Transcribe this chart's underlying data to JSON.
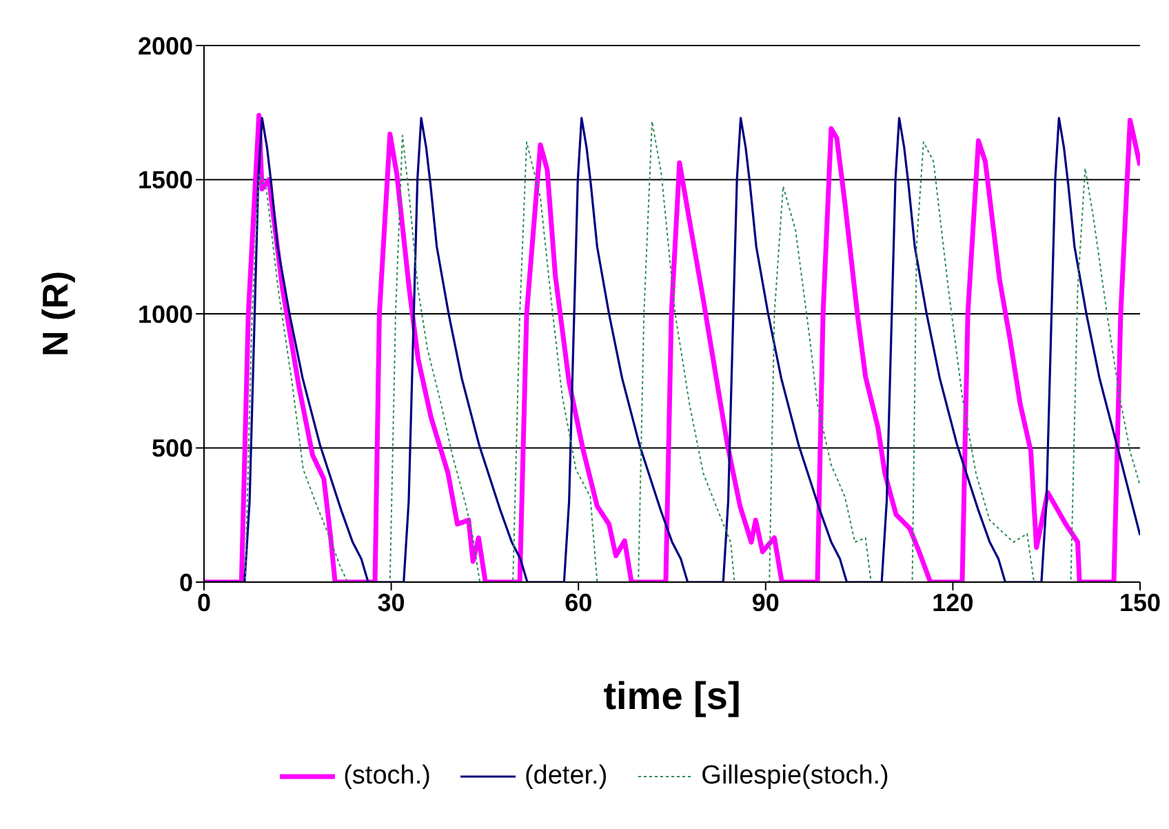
{
  "chart_data": {
    "type": "line",
    "xlabel": "time [s]",
    "ylabel": "N (R)",
    "xlim": [
      0,
      150
    ],
    "xticks": [
      0,
      30,
      60,
      90,
      120,
      150
    ],
    "ylim": [
      0,
      2000
    ],
    "yticks": [
      0,
      500,
      1000,
      1500,
      2000
    ],
    "grid": "y",
    "legend": "bottom",
    "marker": "none",
    "series": [
      {
        "name": "(stoch.)",
        "color": "#ff00ff",
        "line_style": "solid",
        "x": [
          0,
          6.0,
          7.1,
          8.8,
          9.3,
          10.4,
          12.6,
          15.2,
          17.4,
          19.2,
          20.3,
          21.0,
          27.4,
          28.1,
          29.8,
          30.9,
          32.9,
          34.3,
          36.4,
          39.1,
          40.6,
          42.4,
          43.1,
          44.0,
          45.1,
          50.6,
          51.7,
          53.9,
          55.0,
          56.3,
          58.5,
          60.8,
          63.0,
          64.9,
          66.0,
          67.4,
          68.5,
          74.0,
          74.9,
          76.2,
          77.8,
          80.0,
          82.2,
          83.9,
          85.9,
          87.7,
          88.4,
          89.5,
          91.4,
          92.6,
          98.3,
          99.2,
          100.5,
          101.4,
          102.7,
          104.7,
          106.0,
          108.0,
          109.1,
          110.9,
          113.1,
          114.6,
          116.4,
          121.5,
          122.4,
          124.1,
          125.2,
          127.5,
          129.2,
          130.8,
          132.5,
          133.4,
          135.2,
          138.1,
          140.0,
          140.3,
          145.8,
          146.9,
          148.4,
          150
        ],
        "values": [
          0,
          0,
          1000,
          1740,
          1465,
          1500,
          1090,
          730,
          473,
          385,
          165,
          0,
          0,
          1000,
          1670,
          1520,
          1090,
          833,
          612,
          406,
          216,
          231,
          77,
          165,
          0,
          0,
          1000,
          1630,
          1537,
          1141,
          745,
          488,
          283,
          216,
          98,
          154,
          0,
          0,
          1000,
          1563,
          1347,
          1054,
          745,
          509,
          283,
          149,
          231,
          113,
          165,
          0,
          0,
          1000,
          1690,
          1655,
          1414,
          1000,
          766,
          576,
          406,
          252,
          200,
          113,
          0,
          0,
          1000,
          1645,
          1568,
          1126,
          900,
          663,
          488,
          129,
          334,
          216,
          149,
          0,
          0,
          1000,
          1722,
          1553
        ]
      },
      {
        "name": "(deter.)",
        "color": "#000080",
        "line_style": "solid",
        "x": [
          0,
          6.5,
          7.3,
          8.0,
          8.7,
          9.3,
          10.1,
          10.8,
          11.8,
          13.7,
          15.8,
          18.6,
          22.0,
          23.8,
          25.2,
          26.3,
          32.0,
          32.8,
          33.5,
          34.2,
          34.8,
          35.6,
          36.3,
          37.3,
          39.2,
          41.3,
          44.1,
          47.5,
          49.3,
          50.7,
          51.8,
          57.7,
          58.5,
          59.2,
          59.9,
          60.5,
          61.3,
          62.0,
          63.0,
          64.9,
          67.0,
          69.8,
          73.2,
          75.0,
          76.4,
          77.5,
          83.2,
          84.0,
          84.7,
          85.4,
          86.0,
          86.8,
          87.5,
          88.5,
          90.4,
          92.5,
          95.3,
          98.7,
          100.5,
          101.9,
          103.0,
          108.6,
          109.4,
          110.1,
          110.8,
          111.4,
          112.2,
          112.9,
          113.9,
          115.8,
          117.9,
          120.7,
          124.1,
          125.9,
          127.3,
          128.4,
          134.2,
          135.0,
          135.7,
          136.4,
          137.0,
          137.8,
          138.5,
          139.5,
          141.4,
          143.5,
          146.3,
          150
        ],
        "values": [
          0,
          0,
          300,
          900,
          1500,
          1730,
          1620,
          1480,
          1250,
          1000,
          760,
          510,
          267,
          150,
          87,
          0,
          0,
          300,
          900,
          1500,
          1730,
          1620,
          1480,
          1250,
          1000,
          760,
          510,
          267,
          150,
          87,
          0,
          0,
          300,
          900,
          1500,
          1730,
          1620,
          1480,
          1250,
          1000,
          760,
          510,
          267,
          150,
          87,
          0,
          0,
          300,
          900,
          1500,
          1730,
          1620,
          1480,
          1250,
          1000,
          760,
          510,
          267,
          150,
          87,
          0,
          0,
          300,
          900,
          1500,
          1730,
          1620,
          1480,
          1250,
          1000,
          760,
          510,
          267,
          150,
          87,
          0,
          0,
          300,
          900,
          1500,
          1730,
          1620,
          1480,
          1250,
          1000,
          760,
          510,
          175
        ]
      },
      {
        "name": "Gillespie(stoch.)",
        "color": "#2e8b57",
        "line_style": "dotted",
        "x": [
          0,
          6.6,
          7.7,
          8.8,
          10.0,
          11.9,
          14.1,
          15.9,
          18.1,
          19.9,
          21.8,
          23.0,
          29.8,
          30.7,
          31.8,
          32.9,
          34.3,
          35.8,
          38.0,
          39.8,
          42.0,
          43.1,
          44.2,
          49.5,
          50.6,
          51.7,
          53.9,
          55.7,
          57.4,
          59.6,
          61.9,
          63.0,
          69.6,
          70.5,
          71.8,
          73.3,
          75.5,
          77.8,
          80.0,
          82.6,
          84.4,
          85.0,
          90.6,
          91.4,
          92.8,
          94.8,
          97.0,
          98.3,
          100.5,
          102.7,
          104.3,
          106.0,
          106.9,
          113.5,
          114.2,
          115.3,
          116.9,
          119.3,
          121.5,
          123.7,
          125.9,
          129.7,
          131.9,
          133.0,
          138.9,
          140.0,
          141.2,
          142.5,
          144.7,
          146.7,
          148.4,
          150
        ],
        "values": [
          0,
          0,
          1000,
          1520,
          1465,
          1090,
          745,
          420,
          283,
          180,
          60,
          0,
          0,
          1000,
          1665,
          1434,
          1090,
          869,
          663,
          473,
          283,
          165,
          0,
          0,
          1000,
          1640,
          1434,
          1038,
          694,
          420,
          318,
          0,
          0,
          1000,
          1717,
          1520,
          1000,
          663,
          406,
          252,
          149,
          0,
          0,
          1000,
          1475,
          1311,
          920,
          663,
          437,
          318,
          149,
          165,
          0,
          0,
          1260,
          1640,
          1568,
          1090,
          694,
          406,
          231,
          149,
          180,
          0,
          0,
          1090,
          1542,
          1363,
          1000,
          694,
          488,
          360
        ]
      }
    ]
  }
}
